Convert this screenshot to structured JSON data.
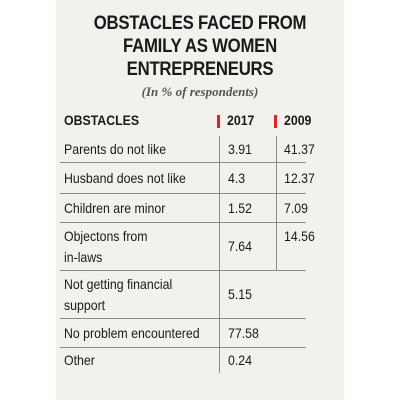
{
  "chart_data": {
    "type": "table",
    "title": [
      "OBSTACLES FACED FROM",
      "FAMILY AS WOMEN",
      "ENTREPRENEURS"
    ],
    "subtitle": "(In % of respondents)",
    "columns": [
      "OBSTACLES",
      "2017",
      "2009"
    ],
    "rows": [
      {
        "label": [
          "Parents do not like"
        ],
        "v2017": "3.91",
        "v2009": "41.37"
      },
      {
        "label": [
          "Husband does not like"
        ],
        "v2017": "4.3",
        "v2009": "12.37"
      },
      {
        "label": [
          "Children are minor"
        ],
        "v2017": "1.52",
        "v2009": "7.09"
      },
      {
        "label": [
          "Objectons from",
          "in-laws"
        ],
        "v2017": "7.64",
        "v2009": "14.56"
      },
      {
        "label": [
          "Not getting financial",
          "support"
        ],
        "v2017": "5.15",
        "v2009": ""
      },
      {
        "label": [
          "No problem encountered"
        ],
        "v2017": "77.58",
        "v2009": ""
      },
      {
        "label": [
          "Other"
        ],
        "v2017": "0.24",
        "v2009": ""
      }
    ]
  },
  "colors": {
    "accent": "#d6262a",
    "panel": "#f2f1ed"
  }
}
